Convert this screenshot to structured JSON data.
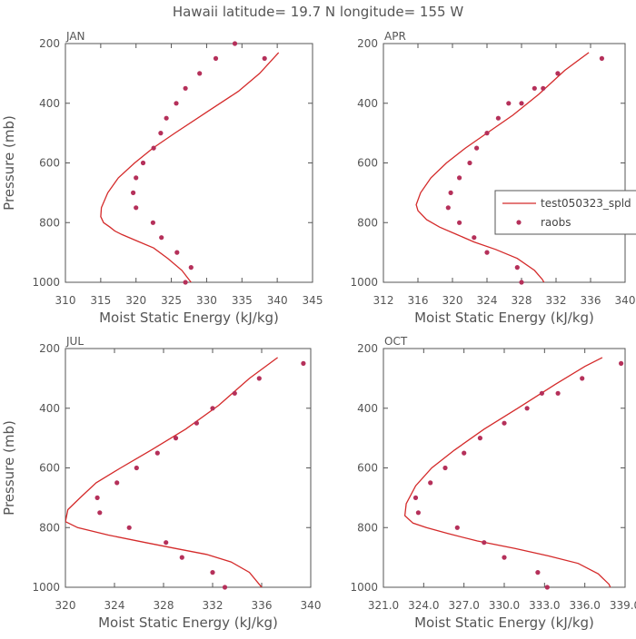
{
  "figure": {
    "title": "Hawaii  latitude= 19.7 N longitude= 155 W"
  },
  "legend": {
    "entries": [
      "test050323_spld",
      "raobs"
    ]
  },
  "colors": {
    "model": "#d42a2a",
    "obs": "#b5305a",
    "axes": "#555555"
  },
  "chart_data": [
    {
      "type": "line",
      "panel": "JAN",
      "xlabel": "Moist Static Energy (kJ/kg)",
      "ylabel": "Pressure (mb)",
      "xlim": [
        310,
        345
      ],
      "ylim": [
        1000,
        200
      ],
      "xticks": [
        310,
        315,
        320,
        325,
        330,
        335,
        340,
        345
      ],
      "xtick_labels": [
        "310",
        "315",
        "320",
        "325",
        "330",
        "335",
        "340",
        "345"
      ],
      "yticks": [
        200,
        400,
        600,
        800,
        1000
      ],
      "ytick_labels": [
        "200",
        "400",
        "600",
        "800",
        "1000"
      ],
      "series": [
        {
          "name": "test050323_spld",
          "kind": "line",
          "x": [
            328.2,
            327.8,
            326.5,
            324.5,
            322.5,
            320.0,
            318.0,
            317.0,
            316.3,
            315.4,
            315.0,
            315.1,
            316.0,
            317.5,
            319.8,
            322.4,
            325.5,
            330.0,
            334.5,
            337.5,
            340.2
          ],
          "y": [
            1010,
            1000,
            960,
            920,
            885,
            860,
            840,
            828,
            815,
            800,
            780,
            750,
            700,
            650,
            600,
            550,
            500,
            430,
            360,
            300,
            230
          ]
        },
        {
          "name": "raobs",
          "kind": "scatter",
          "x": [
            327.0,
            327.8,
            325.8,
            323.6,
            322.4,
            320.0,
            319.6,
            320.0,
            321.0,
            322.5,
            323.5,
            324.3,
            325.7,
            327.0,
            329.0,
            331.3,
            334.0,
            338.2
          ],
          "y": [
            1000,
            950,
            900,
            850,
            800,
            750,
            700,
            650,
            600,
            550,
            500,
            450,
            400,
            350,
            300,
            250,
            200,
            250
          ]
        }
      ]
    },
    {
      "type": "line",
      "panel": "APR",
      "xlabel": "Moist Static Energy (kJ/kg)",
      "ylabel": "",
      "xlim": [
        312,
        340
      ],
      "ylim": [
        1000,
        200
      ],
      "xticks": [
        312,
        316,
        320,
        324,
        328,
        332,
        336,
        340
      ],
      "xtick_labels": [
        "312",
        "316",
        "320",
        "324",
        "328",
        "332",
        "336",
        "340"
      ],
      "yticks": [
        200,
        400,
        600,
        800,
        1000
      ],
      "ytick_labels": [
        "200",
        "400",
        "600",
        "800",
        "1000"
      ],
      "series": [
        {
          "name": "test050323_spld",
          "kind": "line",
          "x": [
            330.8,
            330.4,
            329.5,
            327.5,
            325.0,
            322.5,
            320.5,
            318.5,
            317.0,
            316.0,
            315.8,
            316.3,
            317.5,
            319.3,
            321.5,
            324.0,
            327.0,
            330.0,
            333.0,
            335.8
          ],
          "y": [
            1010,
            990,
            960,
            920,
            890,
            865,
            840,
            815,
            790,
            760,
            740,
            700,
            650,
            600,
            550,
            500,
            440,
            370,
            290,
            230
          ]
        },
        {
          "name": "raobs",
          "kind": "scatter",
          "x": [
            328.0,
            327.5,
            324.0,
            322.5,
            320.8,
            319.5,
            319.8,
            320.8,
            322.0,
            322.8,
            324.0,
            325.3,
            326.5,
            328.0,
            329.5,
            330.5,
            332.2,
            337.3
          ],
          "y": [
            1000,
            950,
            900,
            850,
            800,
            750,
            700,
            650,
            600,
            550,
            500,
            450,
            400,
            400,
            350,
            350,
            300,
            250
          ]
        }
      ]
    },
    {
      "type": "line",
      "panel": "JUL",
      "xlabel": "Moist Static Energy (kJ/kg)",
      "ylabel": "Pressure (mb)",
      "xlim": [
        320,
        340
      ],
      "ylim": [
        1000,
        200
      ],
      "xticks": [
        320,
        324,
        328,
        332,
        336,
        340
      ],
      "xtick_labels": [
        "320",
        "324",
        "328",
        "332",
        "336",
        "340"
      ],
      "yticks": [
        200,
        400,
        600,
        800,
        1000
      ],
      "ytick_labels": [
        "200",
        "400",
        "600",
        "800",
        "1000"
      ],
      "series": [
        {
          "name": "test050323_spld",
          "kind": "line",
          "x": [
            336.2,
            335.8,
            335.0,
            333.5,
            331.5,
            329.0,
            326.5,
            323.5,
            321.0,
            320.0,
            320.2,
            321.2,
            322.5,
            324.5,
            327.0,
            329.8,
            332.5,
            335.0,
            337.3
          ],
          "y": [
            1010,
            990,
            950,
            915,
            890,
            870,
            850,
            825,
            800,
            780,
            740,
            700,
            650,
            600,
            540,
            470,
            390,
            300,
            230
          ]
        },
        {
          "name": "raobs",
          "kind": "scatter",
          "x": [
            333.0,
            332.0,
            329.5,
            328.2,
            325.2,
            322.8,
            322.6,
            324.2,
            325.8,
            327.5,
            329.0,
            330.7,
            332.0,
            333.8,
            335.8,
            339.4
          ],
          "y": [
            1000,
            950,
            900,
            850,
            800,
            750,
            700,
            650,
            600,
            550,
            500,
            450,
            400,
            350,
            300,
            250
          ]
        }
      ]
    },
    {
      "type": "line",
      "panel": "OCT",
      "xlabel": "Moist Static Energy (kJ/kg)",
      "ylabel": "",
      "xlim": [
        321,
        339
      ],
      "ylim": [
        1000,
        200
      ],
      "xticks": [
        321,
        324,
        327,
        330,
        333,
        336,
        339
      ],
      "xtick_labels": [
        "321.0",
        "324.0",
        "327.0",
        "330.0",
        "333.0",
        "336.0",
        "339.0"
      ],
      "yticks": [
        200,
        400,
        600,
        800,
        1000
      ],
      "ytick_labels": [
        "200",
        "400",
        "600",
        "800",
        "1000"
      ],
      "series": [
        {
          "name": "test050323_spld",
          "kind": "line",
          "x": [
            338.0,
            337.8,
            337.0,
            335.5,
            333.3,
            330.8,
            328.0,
            325.8,
            324.2,
            323.2,
            322.6,
            322.7,
            323.4,
            324.6,
            326.3,
            328.5,
            331.0,
            333.8,
            336.0,
            337.3
          ],
          "y": [
            1010,
            990,
            955,
            920,
            895,
            870,
            845,
            820,
            800,
            785,
            760,
            720,
            660,
            600,
            540,
            470,
            400,
            320,
            260,
            230
          ]
        },
        {
          "name": "raobs",
          "kind": "scatter",
          "x": [
            333.2,
            332.5,
            330.0,
            328.5,
            326.5,
            323.6,
            323.4,
            324.5,
            325.6,
            327.0,
            328.2,
            330.0,
            331.7,
            332.8,
            334.0,
            335.8,
            338.7
          ],
          "y": [
            1000,
            950,
            900,
            850,
            800,
            750,
            700,
            650,
            600,
            550,
            500,
            450,
            400,
            350,
            350,
            300,
            250
          ]
        }
      ]
    }
  ]
}
